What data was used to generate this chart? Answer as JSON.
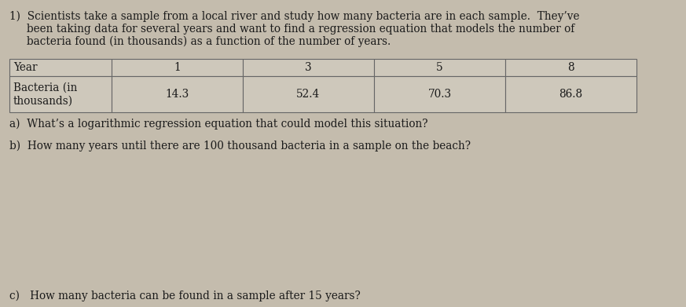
{
  "background_color": "#c4bcad",
  "header_line1": "1)  Scientists take a sample from a local river and study how many bacteria are in each sample.  They’ve",
  "header_line2": "     been taking data for several years and want to find a regression equation that models the number of",
  "header_line3": "     bacteria found (in thousands) as a function of the number of years.",
  "table_headers": [
    "Year",
    "1",
    "3",
    "5",
    "8"
  ],
  "table_row_label_1": "Bacteria (in",
  "table_row_label_2": "thousands)",
  "table_row_values": [
    "14.3",
    "52.4",
    "70.3",
    "86.8"
  ],
  "question_a": "a)  What’s a logarithmic regression equation that could model this situation?",
  "question_b": "b)  How many years until there are 100 thousand bacteria in a sample on the beach?",
  "question_c": "c)   How many bacteria can be found in a sample after 15 years?",
  "text_color": "#1a1a1a",
  "table_bg": "#cec8bb",
  "table_border": "#666666",
  "font_size_body": 9.8,
  "font_size_table": 9.8
}
